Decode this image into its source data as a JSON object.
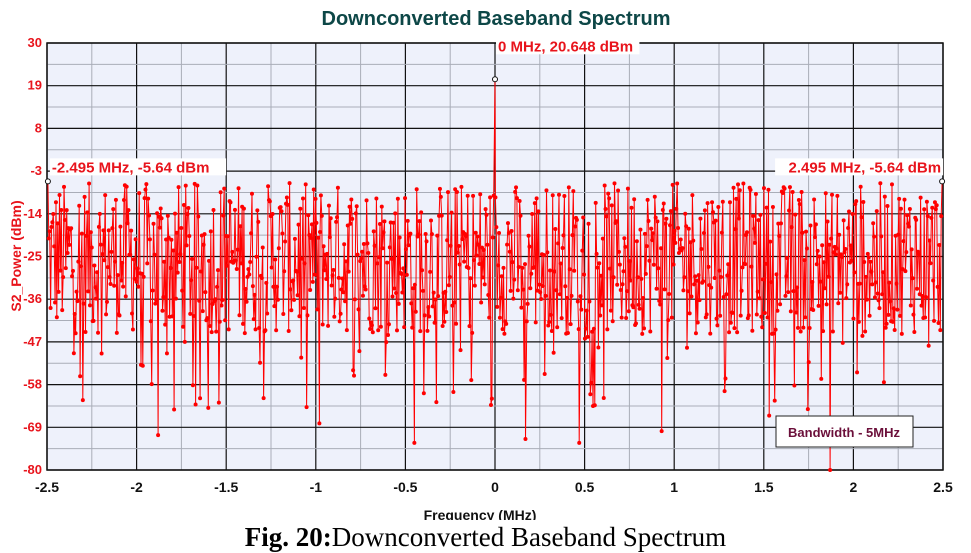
{
  "chart_data": {
    "type": "line",
    "title": "Downconverted Baseband Spectrum",
    "xlabel": "Frequency (MHz)",
    "ylabel": "S2_Power (dBm)",
    "xlim": [
      -2.5,
      2.5
    ],
    "ylim": [
      -80,
      30
    ],
    "xticks": [
      "-2.5",
      "-2",
      "-1.5",
      "-1",
      "-0.5",
      "0",
      "0.5",
      "1",
      "1.5",
      "2",
      "2.5"
    ],
    "yticks": [
      "30",
      "19",
      "8",
      "-3",
      "-14",
      "-25",
      "-36",
      "-47",
      "-58",
      "-69",
      "-80"
    ],
    "grid": true,
    "series_color": "#ff0000",
    "noise_floor": {
      "typical_min_dBm": -45,
      "typical_max_dBm": -6,
      "mean_dBm": -25,
      "deep_min_dBm": -73
    },
    "notable_minima": [
      {
        "x": -2.3,
        "y": -62
      },
      {
        "x": -1.88,
        "y": -71
      },
      {
        "x": -1.6,
        "y": -64
      },
      {
        "x": -0.98,
        "y": -68
      },
      {
        "x": -0.45,
        "y": -73
      },
      {
        "x": 0.17,
        "y": -72
      },
      {
        "x": 0.47,
        "y": -73
      },
      {
        "x": 0.93,
        "y": -70
      },
      {
        "x": 1.53,
        "y": -66
      },
      {
        "x": 1.87,
        "y": -80
      }
    ],
    "markers": [
      {
        "x": 0,
        "y": 20.648,
        "label": "0 MHz, 20.648 dBm"
      },
      {
        "x": -2.495,
        "y": -5.64,
        "label": "-2.495 MHz, -5.64 dBm"
      },
      {
        "x": 2.495,
        "y": -5.64,
        "label": "2.495 MHz, -5.64 dBm"
      }
    ],
    "annotation": "Bandwidth - 5MHz",
    "colors": {
      "plot_bg": "#eef1fb",
      "title": "#0d4747",
      "ytick": "#e8141c",
      "annotation": "#6b0f3a"
    }
  },
  "caption": {
    "prefix": "Fig. 20:",
    "text": "Downconverted Baseband Spectrum"
  }
}
